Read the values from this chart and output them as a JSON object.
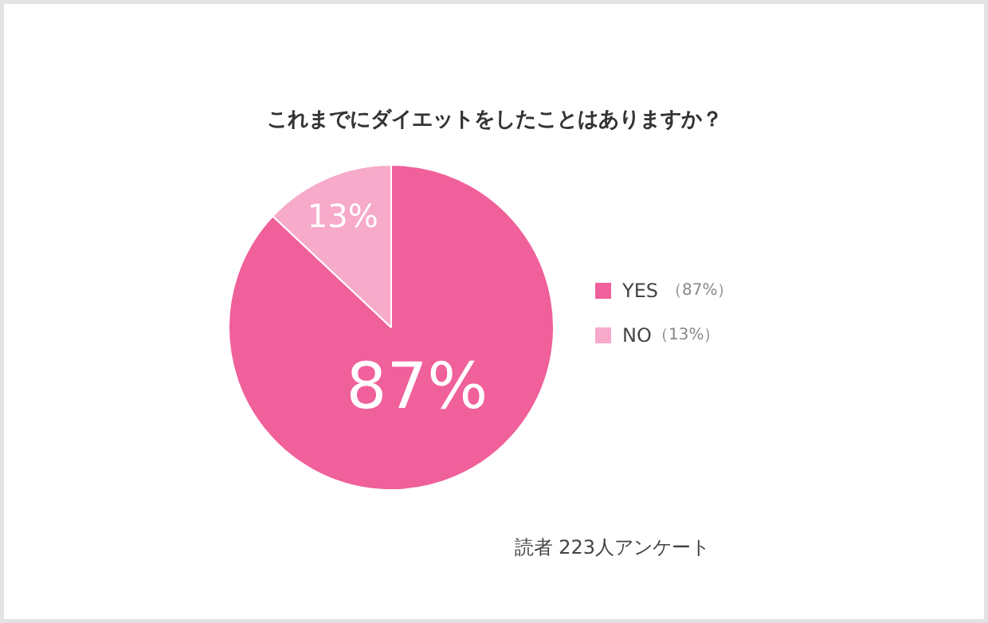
{
  "chart_data": {
    "type": "pie",
    "title": "これまでにダイエットをしたことはありますか？",
    "categories": [
      "YES",
      "NO"
    ],
    "values": [
      87,
      13
    ],
    "colors": [
      "#f0609a",
      "#f7aac9"
    ],
    "value_labels": [
      "87%",
      "13%"
    ],
    "legend": "right",
    "annotations": [
      "（87%）",
      "（13%）",
      "読者 223人アンケート"
    ]
  }
}
